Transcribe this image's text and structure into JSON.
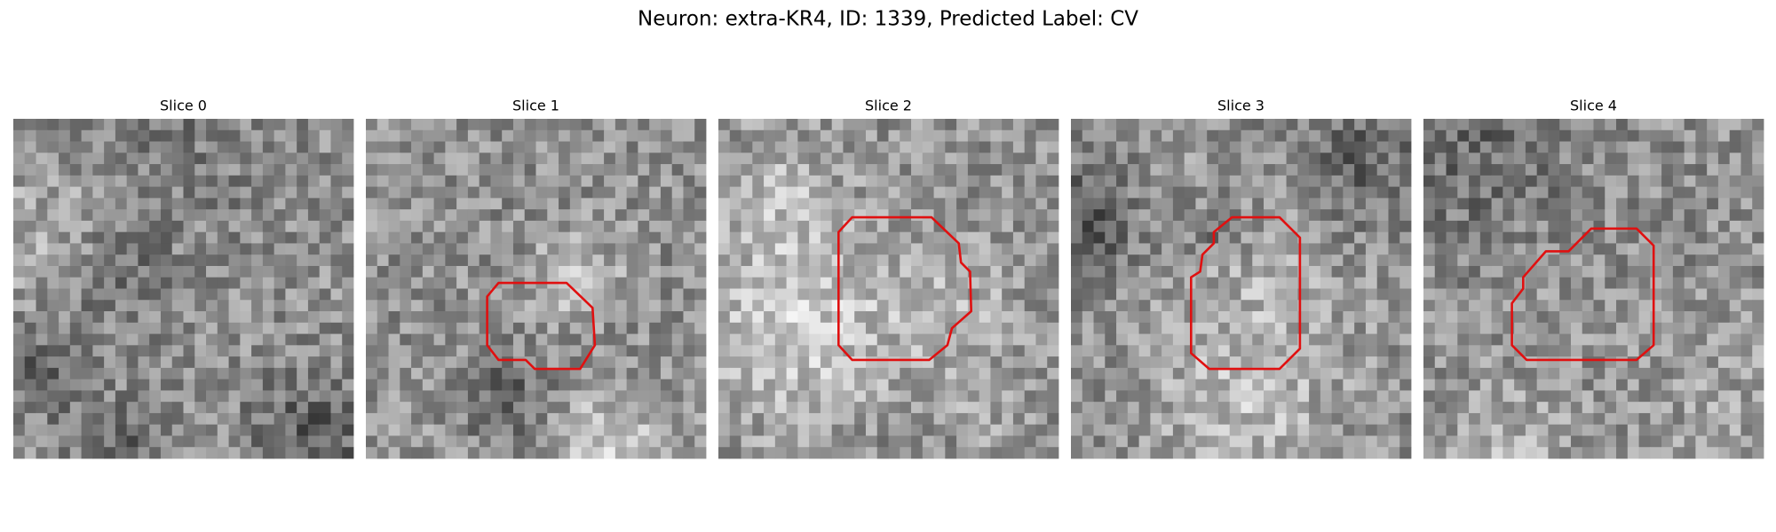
{
  "title": "Neuron: extra-KR4, ID: 1339, Predicted Label: CV",
  "panels": [
    {
      "label": "Slice 0"
    },
    {
      "label": "Slice 1"
    },
    {
      "label": "Slice 2"
    },
    {
      "label": "Slice 3"
    },
    {
      "label": "Slice 4"
    }
  ]
}
